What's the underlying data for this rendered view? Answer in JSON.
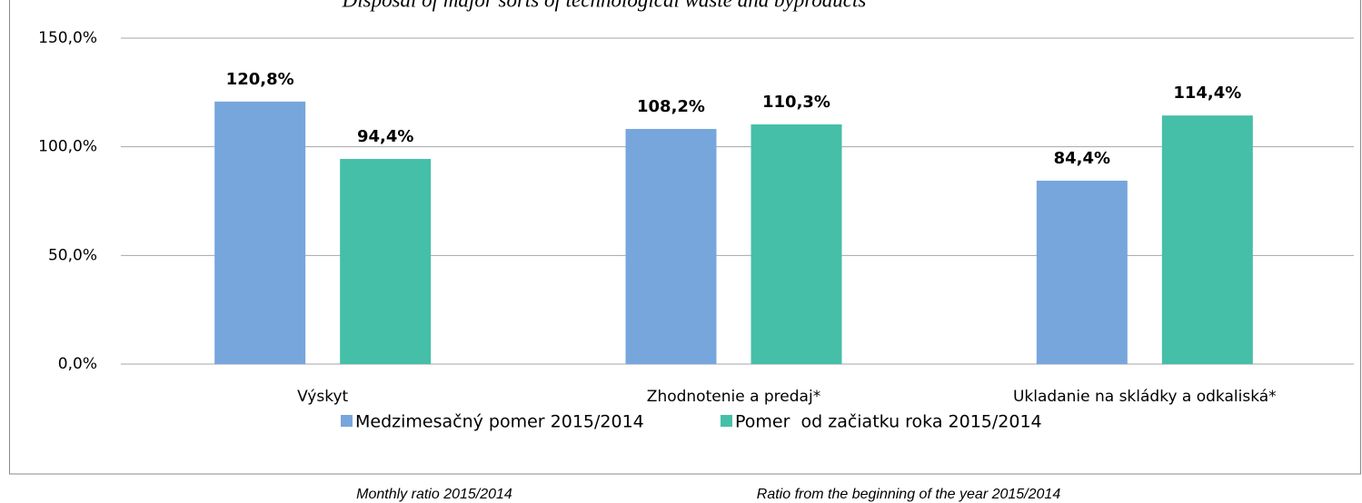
{
  "chart_data": {
    "type": "bar",
    "title": "Disposal of major sorts of technological waste and byproducts",
    "categories": [
      "Výskyt",
      "Zhodnotenie a predaj*",
      "Ukladanie na skládky a odkaliská*"
    ],
    "series": [
      {
        "name": "Medzimesačný pomer 2015/2014",
        "color": "#77a6dd",
        "values": [
          120.8,
          108.2,
          84.4
        ],
        "value_labels": [
          "120,8%",
          "108,2%",
          "84,4%"
        ]
      },
      {
        "name": "Pomer  od začiatku roka 2015/2014",
        "color": "#45bfa8",
        "values": [
          94.4,
          110.3,
          114.4
        ],
        "value_labels": [
          "94,4%",
          "110,3%",
          "114,4%"
        ]
      }
    ],
    "ylim": [
      0,
      150
    ],
    "yticks": [
      {
        "value": 0,
        "label": "0,0%"
      },
      {
        "value": 50,
        "label": "50,0%"
      },
      {
        "value": 100,
        "label": "100,0%"
      },
      {
        "value": 150,
        "label": "150,0%"
      }
    ],
    "grid": true,
    "legend": "bottom",
    "annotations": [
      "Monthly ratio 2015/2014",
      "Ratio from the beginning of the year 2015/2014"
    ]
  }
}
